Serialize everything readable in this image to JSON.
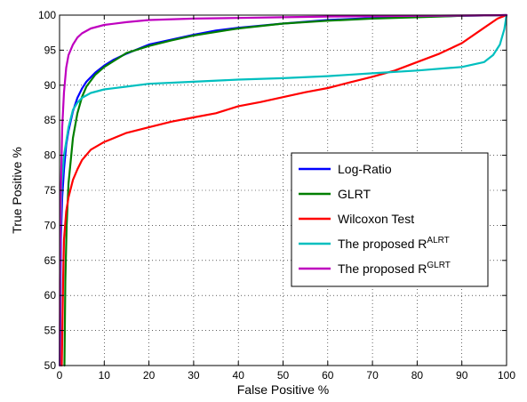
{
  "chart_data": {
    "type": "line",
    "title": "",
    "xlabel": "False Positive %",
    "ylabel": "True Positive %",
    "xlim": [
      0,
      100
    ],
    "ylim": [
      50,
      100
    ],
    "x_ticks": [
      "0",
      "10",
      "20",
      "30",
      "40",
      "50",
      "60",
      "70",
      "80",
      "90",
      "100"
    ],
    "y_ticks": [
      "50",
      "55",
      "60",
      "65",
      "70",
      "75",
      "80",
      "85",
      "90",
      "95",
      "100"
    ],
    "grid": true,
    "legend_position": "right",
    "series": [
      {
        "name": "Log-Ratio",
        "color": "#0000ff",
        "points": [
          [
            0.1,
            50
          ],
          [
            0.3,
            68
          ],
          [
            0.6,
            74
          ],
          [
            1,
            78
          ],
          [
            1.5,
            81.5
          ],
          [
            2,
            83.5
          ],
          [
            3,
            86.3
          ],
          [
            4,
            88.2
          ],
          [
            5,
            89.5
          ],
          [
            6,
            90.5
          ],
          [
            8,
            91.8
          ],
          [
            10,
            92.8
          ],
          [
            12,
            93.6
          ],
          [
            15,
            94.5
          ],
          [
            20,
            95.8
          ],
          [
            25,
            96.5
          ],
          [
            30,
            97.2
          ],
          [
            35,
            97.8
          ],
          [
            40,
            98.2
          ],
          [
            50,
            98.8
          ],
          [
            60,
            99.3
          ],
          [
            70,
            99.6
          ],
          [
            80,
            99.8
          ],
          [
            90,
            99.9
          ],
          [
            100,
            100
          ]
        ]
      },
      {
        "name": "GLRT",
        "color": "#007f00",
        "points": [
          [
            1.1,
            50
          ],
          [
            1.3,
            62
          ],
          [
            1.6,
            70
          ],
          [
            2,
            76
          ],
          [
            3,
            82.5
          ],
          [
            4,
            86
          ],
          [
            5,
            88.3
          ],
          [
            6,
            89.8
          ],
          [
            8,
            91.5
          ],
          [
            10,
            92.6
          ],
          [
            12,
            93.4
          ],
          [
            15,
            94.6
          ],
          [
            20,
            95.6
          ],
          [
            25,
            96.4
          ],
          [
            30,
            97.1
          ],
          [
            35,
            97.6
          ],
          [
            40,
            98.1
          ],
          [
            50,
            98.8
          ],
          [
            60,
            99.2
          ],
          [
            70,
            99.5
          ],
          [
            80,
            99.7
          ],
          [
            90,
            99.9
          ],
          [
            100,
            100
          ]
        ]
      },
      {
        "name": "Wilcoxon Test",
        "color": "#ff0000",
        "points": [
          [
            0.5,
            50
          ],
          [
            0.8,
            62
          ],
          [
            1,
            68
          ],
          [
            1.5,
            72
          ],
          [
            2,
            74
          ],
          [
            3,
            76.5
          ],
          [
            4,
            78
          ],
          [
            5,
            79.3
          ],
          [
            7,
            80.8
          ],
          [
            10,
            81.9
          ],
          [
            15,
            83.2
          ],
          [
            20,
            84
          ],
          [
            25,
            84.8
          ],
          [
            30,
            85.4
          ],
          [
            35,
            86
          ],
          [
            40,
            87
          ],
          [
            45,
            87.6
          ],
          [
            50,
            88.3
          ],
          [
            55,
            89
          ],
          [
            60,
            89.6
          ],
          [
            65,
            90.4
          ],
          [
            70,
            91.2
          ],
          [
            75,
            92.1
          ],
          [
            80,
            93.3
          ],
          [
            85,
            94.5
          ],
          [
            90,
            96
          ],
          [
            95,
            98.2
          ],
          [
            98,
            99.5
          ],
          [
            100,
            100
          ]
        ]
      },
      {
        "name": "The proposed R",
        "sup": "ALRT",
        "color": "#00bfbf",
        "points": [
          [
            0.05,
            50
          ],
          [
            0.2,
            68
          ],
          [
            0.5,
            76
          ],
          [
            1,
            80
          ],
          [
            2,
            84
          ],
          [
            3,
            86.5
          ],
          [
            4,
            87.5
          ],
          [
            5,
            88.2
          ],
          [
            7,
            88.9
          ],
          [
            10,
            89.4
          ],
          [
            15,
            89.8
          ],
          [
            20,
            90.2
          ],
          [
            30,
            90.5
          ],
          [
            40,
            90.8
          ],
          [
            50,
            91
          ],
          [
            60,
            91.3
          ],
          [
            70,
            91.7
          ],
          [
            80,
            92.1
          ],
          [
            90,
            92.6
          ],
          [
            95,
            93.3
          ],
          [
            97,
            94.3
          ],
          [
            98.5,
            95.8
          ],
          [
            99.5,
            98
          ],
          [
            100,
            100
          ]
        ]
      },
      {
        "name": "The proposed R",
        "sup": "GLRT",
        "color": "#bf00bf",
        "points": [
          [
            0.05,
            50
          ],
          [
            0.1,
            62
          ],
          [
            0.3,
            75
          ],
          [
            0.6,
            84
          ],
          [
            1,
            89
          ],
          [
            1.5,
            92.5
          ],
          [
            2,
            94.3
          ],
          [
            3,
            95.8
          ],
          [
            4,
            96.8
          ],
          [
            5,
            97.4
          ],
          [
            7,
            98.1
          ],
          [
            10,
            98.6
          ],
          [
            15,
            99
          ],
          [
            20,
            99.3
          ],
          [
            30,
            99.5
          ],
          [
            40,
            99.6
          ],
          [
            50,
            99.7
          ],
          [
            60,
            99.8
          ],
          [
            80,
            99.9
          ],
          [
            100,
            100
          ]
        ]
      }
    ]
  }
}
